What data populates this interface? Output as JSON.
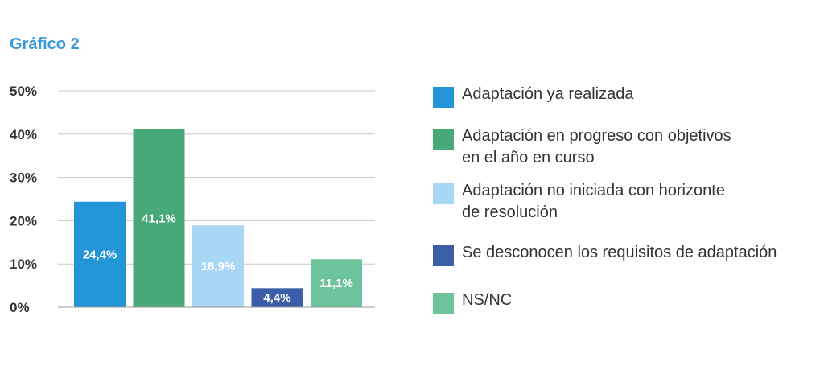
{
  "title": "Gráfico 2",
  "title_color": "#3a9ad9",
  "chart_data": {
    "type": "bar",
    "title": "Gráfico 2",
    "xlabel": "",
    "ylabel": "",
    "ylim": [
      0,
      50
    ],
    "y_ticks": [
      "0%",
      "10%",
      "20%",
      "30%",
      "40%",
      "50%"
    ],
    "y_tick_values": [
      0,
      10,
      20,
      30,
      40,
      50
    ],
    "grid": true,
    "legend_position": "right",
    "categories": [
      "Adaptación ya realizada",
      "Adaptación en progreso con objetivos\nen el año en curso",
      "Adaptación no iniciada con horizonte\nde resolución",
      "Se desconocen los requisitos de adaptación",
      "NS/NC"
    ],
    "values": [
      24.4,
      41.1,
      18.9,
      4.4,
      11.1
    ],
    "data_labels": [
      "24,4%",
      "41,1%",
      "18,9%",
      "4,4%",
      "11,1%"
    ],
    "colors": [
      "#2394d6",
      "#48a878",
      "#a8d6f5",
      "#3b5ea8",
      "#6dc49a"
    ]
  }
}
